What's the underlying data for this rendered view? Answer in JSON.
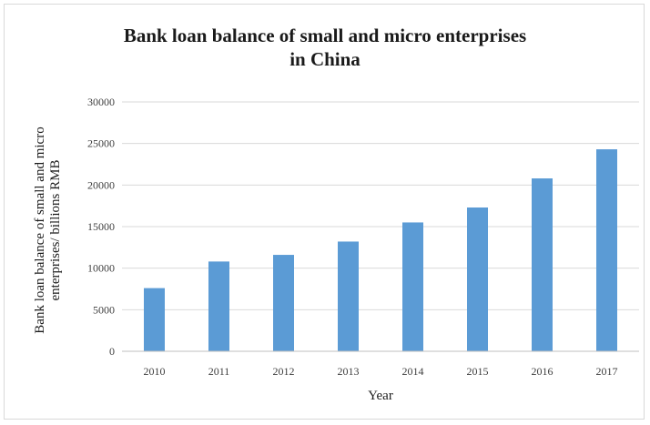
{
  "chart_data": {
    "type": "bar",
    "title_lines": [
      "Bank loan balance of small and micro enterprises",
      "in China"
    ],
    "xlabel": "Year",
    "ylabel_lines": [
      "Bank loan balance of small and micro",
      "enterprises/ billions RMB"
    ],
    "categories": [
      "2010",
      "2011",
      "2012",
      "2013",
      "2014",
      "2015",
      "2016",
      "2017"
    ],
    "values": [
      7600,
      10800,
      11600,
      13200,
      15500,
      17300,
      20800,
      24300
    ],
    "ylim": [
      0,
      30000
    ],
    "yticks": [
      "0",
      "5000",
      "10000",
      "15000",
      "20000",
      "25000",
      "30000"
    ],
    "grid": true,
    "legend": "none",
    "bar_color": "#5b9bd5"
  }
}
